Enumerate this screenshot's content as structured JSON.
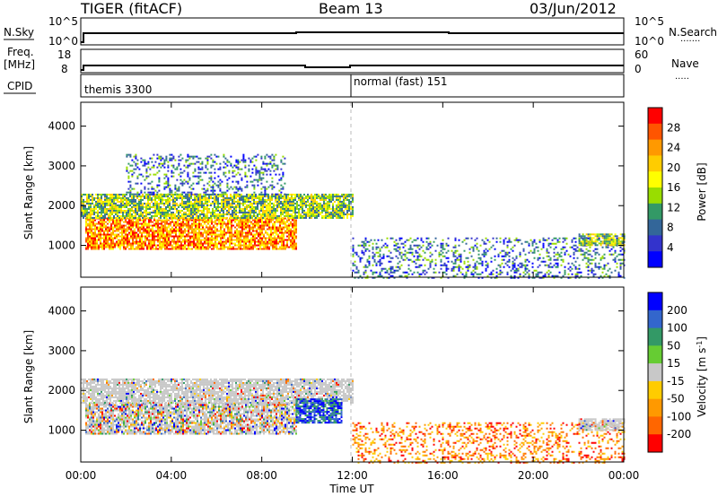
{
  "header": {
    "radar": "TIGER (fitACF)",
    "beam": "Beam 13",
    "date": "03/Jun/2012"
  },
  "aux_panels": {
    "nsky": {
      "label": "N.Sky",
      "ticks": [
        "10^5",
        "10^0"
      ],
      "right_label": "N.Search",
      "right_ticks": [
        "10^5",
        "10^0"
      ],
      "right_legend": "......."
    },
    "freq": {
      "label_line1": "Freq.",
      "label_line2": "[MHz]",
      "ticks": [
        "18",
        "8"
      ],
      "right_label": "Nave",
      "right_ticks": [
        "60",
        "0"
      ],
      "right_legend": "....."
    },
    "cpid": {
      "label": "CPID",
      "segments": [
        {
          "text": "themis 3300",
          "start_hour": 0
        },
        {
          "text": "normal (fast) 151",
          "start_hour": 12
        }
      ]
    }
  },
  "x_axis": {
    "label": "Time UT",
    "ticks": [
      "00:00",
      "04:00",
      "08:00",
      "12:00",
      "16:00",
      "20:00",
      "00:00"
    ]
  },
  "colorbars": {
    "power": {
      "label": "Power [dB]",
      "ticks": [
        "28",
        "24",
        "20",
        "16",
        "12",
        "8",
        "4"
      ],
      "colors": [
        "#ff0000",
        "#ff5500",
        "#ff9900",
        "#ffcc00",
        "#ffff00",
        "#99dd00",
        "#339966",
        "#336699",
        "#3333cc",
        "#0000ff"
      ]
    },
    "velocity": {
      "label_main": "Velocity [m s",
      "label_sup": "-1",
      "label_end": "]",
      "ticks": [
        "200",
        "100",
        "50",
        "15",
        "-15",
        "-50",
        "-100",
        "-200"
      ],
      "colors": [
        "#0000ff",
        "#3366cc",
        "#339966",
        "#66cc33",
        "#c8c8c8",
        "#ffcc00",
        "#ff9900",
        "#ff6600",
        "#ff0000"
      ]
    }
  },
  "chart_data": [
    {
      "type": "heatmap",
      "title": "Power",
      "xlabel": "",
      "ylabel": "Slant Range [km]",
      "x_range_hours": [
        0,
        24
      ],
      "ylim": [
        200,
        4600
      ],
      "y_ticks": [
        "4000",
        "3000",
        "2000",
        "1000"
      ],
      "y_tick_values": [
        4000,
        3000,
        2000,
        1000
      ],
      "regions": [
        {
          "t0": 0.2,
          "t1": 9.5,
          "r0": 900,
          "r1": 1700,
          "level": "high"
        },
        {
          "t0": 0.0,
          "t1": 12.0,
          "r0": 1700,
          "r1": 2300,
          "level": "mid"
        },
        {
          "t0": 2.0,
          "t1": 9.0,
          "r0": 2300,
          "r1": 3300,
          "level": "low"
        },
        {
          "t0": 12.0,
          "t1": 24.0,
          "r0": 200,
          "r1": 1200,
          "level": "low"
        },
        {
          "t0": 22.0,
          "t1": 24.0,
          "r0": 1000,
          "r1": 1300,
          "level": "mid"
        }
      ]
    },
    {
      "type": "heatmap",
      "title": "Velocity",
      "xlabel": "Time UT",
      "ylabel": "Slant Range [km]",
      "x_range_hours": [
        0,
        24
      ],
      "ylim": [
        200,
        4600
      ],
      "y_ticks": [
        "4000",
        "3000",
        "2000",
        "1000"
      ],
      "y_tick_values": [
        4000,
        3000,
        2000,
        1000
      ],
      "regions": [
        {
          "t0": 0.2,
          "t1": 9.5,
          "r0": 900,
          "r1": 1700,
          "level": "mixed"
        },
        {
          "t0": 0.0,
          "t1": 12.0,
          "r0": 1700,
          "r1": 2300,
          "level": "ground"
        },
        {
          "t0": 9.5,
          "t1": 11.5,
          "r0": 1200,
          "r1": 1800,
          "level": "positive"
        },
        {
          "t0": 12.0,
          "t1": 24.0,
          "r0": 200,
          "r1": 1200,
          "level": "negative"
        },
        {
          "t0": 22.0,
          "t1": 24.0,
          "r0": 1000,
          "r1": 1300,
          "level": "ground"
        }
      ]
    }
  ]
}
